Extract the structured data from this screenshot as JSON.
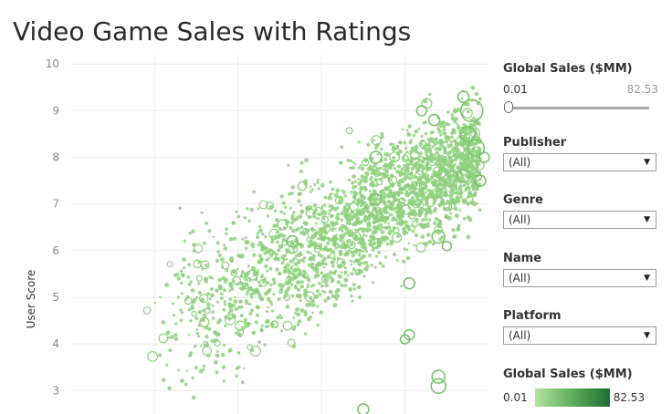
{
  "title": "Video Game Sales with Ratings",
  "filters": {
    "sales_slider": {
      "label": "Global Sales ($MM)",
      "min_label": "0.01",
      "max_label": "82.53",
      "value": 0.01
    },
    "publisher": {
      "label": "Publisher",
      "value": "(All)"
    },
    "genre": {
      "label": "Genre",
      "value": "(All)"
    },
    "name": {
      "label": "Name",
      "value": "(All)"
    },
    "platform": {
      "label": "Platform",
      "value": "(All)"
    }
  },
  "legend": {
    "title": "Global Sales ($MM)",
    "min_label": "0.01",
    "max_label": "82.53",
    "colors": [
      "#b6e3a2",
      "#5cae5a",
      "#1e6f32"
    ]
  },
  "chart_data": {
    "type": "scatter",
    "ylabel": "User Score",
    "xlabel": "",
    "y_ticks": [
      3,
      4,
      5,
      6,
      7,
      8,
      9,
      10
    ],
    "ylim": [
      2.5,
      10.2
    ],
    "xlim": [
      0,
      100
    ],
    "grid": true,
    "point_color": "#8fd17f",
    "size_encodes": "Global Sales ($MM)",
    "highlight_points": [
      {
        "x": 96,
        "y": 9.0,
        "s": 20
      },
      {
        "x": 97,
        "y": 8.2,
        "s": 14
      },
      {
        "x": 95,
        "y": 8.5,
        "s": 12
      },
      {
        "x": 94,
        "y": 7.6,
        "s": 10
      },
      {
        "x": 88,
        "y": 6.3,
        "s": 10
      },
      {
        "x": 88,
        "y": 3.1,
        "s": 12
      },
      {
        "x": 88,
        "y": 3.3,
        "s": 10
      },
      {
        "x": 81,
        "y": 5.3,
        "s": 8
      },
      {
        "x": 73,
        "y": 8.0,
        "s": 9
      },
      {
        "x": 73,
        "y": 7.1,
        "s": 8
      },
      {
        "x": 53,
        "y": 6.2,
        "s": 8
      },
      {
        "x": 80,
        "y": 4.1,
        "s": 6
      },
      {
        "x": 87,
        "y": 8.8,
        "s": 8
      },
      {
        "x": 98,
        "y": 7.5,
        "s": 8
      },
      {
        "x": 84,
        "y": 9.0,
        "s": 7
      },
      {
        "x": 70,
        "y": 2.6,
        "s": 8
      },
      {
        "x": 81,
        "y": 4.2,
        "s": 7
      },
      {
        "x": 90,
        "y": 6.1,
        "s": 6
      },
      {
        "x": 94,
        "y": 9.3,
        "s": 8
      },
      {
        "x": 99,
        "y": 8.0,
        "s": 7
      }
    ]
  }
}
